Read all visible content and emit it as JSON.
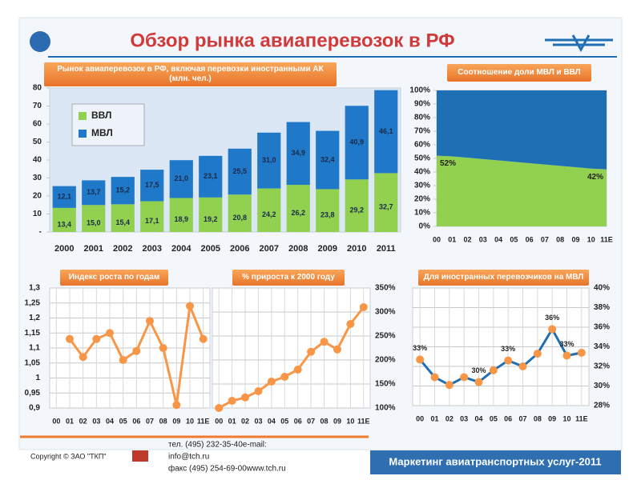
{
  "title": "Обзор рынка авиаперевозок в РФ",
  "footer": {
    "copyright": "Copyright © ЗАО \"ТКП\"",
    "contacts": [
      "тел.  (495) 232-35-40e-mail:",
      "info@tch.ru",
      "факс (495) 254-69-00www.tch.ru"
    ],
    "banner": "Маркетинг авиатранспортных услуг-2011"
  },
  "chart_data": [
    {
      "type": "bar",
      "stacked": true,
      "title": "Рынок авиаперевозок в РФ, включая перевозки иностранными АК (млн. чел.)",
      "categories": [
        "2000",
        "2001",
        "2002",
        "2003",
        "2004",
        "2005",
        "2006",
        "2007",
        "2008",
        "2009",
        "2010",
        "2011"
      ],
      "series": [
        {
          "name": "ВВЛ",
          "color": "#92d050",
          "values": [
            13.4,
            15.0,
            15.4,
            17.1,
            18.9,
            19.2,
            20.8,
            24.2,
            26.2,
            23.8,
            29.2,
            32.7
          ],
          "value_labels": [
            "13,4",
            "15,0",
            "15,4",
            "17,1",
            "18,9",
            "19,2",
            "20,8",
            "24,2",
            "26,2",
            "23,8",
            "29,2",
            "32,7"
          ]
        },
        {
          "name": "МВЛ",
          "color": "#1f78c8",
          "values": [
            12.1,
            13.7,
            15.2,
            17.5,
            21.0,
            23.1,
            25.5,
            31.0,
            34.9,
            32.4,
            40.9,
            46.1
          ],
          "value_labels": [
            "12,1",
            "13,7",
            "15,2",
            "17,5",
            "21,0",
            "23,1",
            "25,5",
            "31,0",
            "34,9",
            "32,4",
            "40,9",
            "46,1"
          ]
        }
      ],
      "ylim": [
        0,
        80
      ],
      "yticks": [
        {
          "value": 0,
          "label": "-"
        },
        10,
        20,
        30,
        40,
        50,
        60,
        70,
        80
      ],
      "grid": false,
      "legend": "top-left"
    },
    {
      "type": "area",
      "stacked": true,
      "title": "Соотношение доли МВЛ и ВВЛ",
      "categories": [
        "00",
        "01",
        "02",
        "03",
        "04",
        "05",
        "06",
        "07",
        "08",
        "09",
        "10",
        "11E"
      ],
      "series": [
        {
          "color": "#92d050",
          "values": [
            52,
            51.5,
            50.5,
            49.5,
            48.5,
            47.5,
            46.5,
            45.5,
            44.5,
            43.5,
            42.5,
            42
          ],
          "value_labels": [
            "52%",
            null,
            null,
            null,
            null,
            null,
            null,
            null,
            null,
            null,
            null,
            "42%"
          ]
        },
        {
          "color": "#1f6fb4",
          "values": [
            48,
            48.5,
            49.5,
            50.5,
            51.5,
            52.5,
            53.5,
            54.5,
            55.5,
            56.5,
            57.5,
            58
          ]
        }
      ],
      "ylim": [
        0,
        100
      ],
      "yticks": [
        {
          "value": 0,
          "label": "0%"
        },
        {
          "value": 10,
          "label": "10%"
        },
        {
          "value": 20,
          "label": "20%"
        },
        {
          "value": 30,
          "label": "30%"
        },
        {
          "value": 40,
          "label": "40%"
        },
        {
          "value": 50,
          "label": "50%"
        },
        {
          "value": 60,
          "label": "60%"
        },
        {
          "value": 70,
          "label": "70%"
        },
        {
          "value": 80,
          "label": "80%"
        },
        {
          "value": 90,
          "label": "90%"
        },
        {
          "value": 100,
          "label": "100%"
        }
      ],
      "grid": false
    },
    {
      "type": "line",
      "title": "Индекс роста по годам",
      "categories": [
        "00",
        "01",
        "02",
        "03",
        "04",
        "05",
        "06",
        "07",
        "08",
        "09",
        "10",
        "11E"
      ],
      "series": [
        {
          "color": "#f79646",
          "marker_color": "#f79646",
          "values": [
            null,
            1.13,
            1.07,
            1.13,
            1.15,
            1.06,
            1.09,
            1.19,
            1.1,
            0.91,
            1.24,
            1.13
          ]
        }
      ],
      "ylim": [
        0.9,
        1.3
      ],
      "yticks": [
        {
          "value": 0.9,
          "label": "0,9"
        },
        {
          "value": 0.95,
          "label": "0,95"
        },
        1,
        {
          "value": 1.05,
          "label": "1,05"
        },
        {
          "value": 1.1,
          "label": "1,1"
        },
        {
          "value": 1.15,
          "label": "1,15"
        },
        {
          "value": 1.2,
          "label": "1,2"
        },
        {
          "value": 1.25,
          "label": "1,25"
        },
        {
          "value": 1.3,
          "label": "1,3"
        }
      ],
      "grid": true
    },
    {
      "type": "line",
      "title": "% прироста к 2000 году",
      "categories": [
        "00",
        "01",
        "02",
        "03",
        "04",
        "05",
        "06",
        "07",
        "08",
        "09",
        "10",
        "11E"
      ],
      "series": [
        {
          "color": "#f79646",
          "marker_color": "#f79646",
          "values": [
            100,
            115,
            122,
            135,
            155,
            165,
            180,
            217,
            238,
            222,
            275,
            310
          ]
        }
      ],
      "ylim": [
        100,
        350
      ],
      "yticks": [
        {
          "value": 100,
          "label": "100%"
        },
        {
          "value": 150,
          "label": "150%"
        },
        {
          "value": 200,
          "label": "200%"
        },
        {
          "value": 250,
          "label": "250%"
        },
        {
          "value": 300,
          "label": "300%"
        },
        {
          "value": 350,
          "label": "350%"
        }
      ],
      "grid": true
    },
    {
      "type": "line",
      "title": "Для иностранных перевозчиков на МВЛ",
      "categories": [
        "00",
        "01",
        "02",
        "03",
        "04",
        "05",
        "06",
        "07",
        "08",
        "09",
        "10",
        "11E"
      ],
      "series": [
        {
          "color": "#1f6fb4",
          "marker_color": "#f79646",
          "values": [
            32.7,
            30.9,
            30.1,
            30.9,
            30.4,
            31.6,
            32.6,
            32.0,
            33.3,
            35.8,
            33.1,
            33.4
          ],
          "value_labels": [
            "33%",
            null,
            null,
            null,
            "30%",
            null,
            "33%",
            null,
            null,
            "36%",
            "33%",
            null
          ]
        }
      ],
      "ylim": [
        28,
        40
      ],
      "yticks": [
        {
          "value": 28,
          "label": "28%"
        },
        {
          "value": 30,
          "label": "30%"
        },
        {
          "value": 32,
          "label": "32%"
        },
        {
          "value": 34,
          "label": "34%"
        },
        {
          "value": 36,
          "label": "36%"
        },
        {
          "value": 38,
          "label": "38%"
        },
        {
          "value": 40,
          "label": "40%"
        }
      ],
      "grid": true
    }
  ]
}
